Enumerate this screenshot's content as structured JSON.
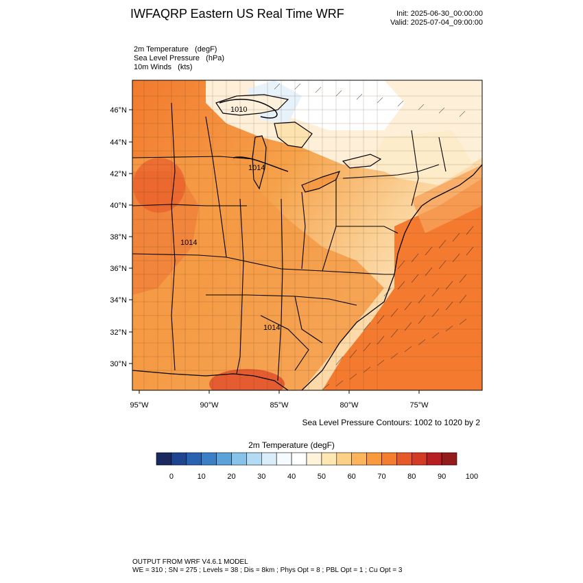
{
  "header": {
    "title": "IWFAQRP Eastern US Real Time WRF",
    "init": "Init: 2025-06-30_00:00:00",
    "valid": "Valid: 2025-07-04_09:00:00"
  },
  "variables": [
    "2m Temperature   (degF)",
    "Sea Level Pressure   (hPa)",
    "10m Winds   (kts)"
  ],
  "map": {
    "lat_ticks": [
      "46°N",
      "44°N",
      "42°N",
      "40°N",
      "38°N",
      "36°N",
      "34°N",
      "32°N",
      "30°N"
    ],
    "lon_ticks": [
      "95°W",
      "90°W",
      "85°W",
      "80°W",
      "75°W"
    ],
    "isobar_labels": [
      "1010",
      "1014",
      "1014",
      "1014"
    ],
    "slp_note": "Sea Level Pressure Contours: 1002 to 1020 by 2"
  },
  "colorbar": {
    "title": "2m Temperature  (degF)",
    "tick_labels": [
      "0",
      "10",
      "20",
      "30",
      "40",
      "50",
      "60",
      "70",
      "80",
      "90",
      "100"
    ],
    "colors": [
      "#1a2a5e",
      "#1f4591",
      "#2a62b2",
      "#3b80c6",
      "#5aa2d9",
      "#86c2ea",
      "#b3dcf4",
      "#daeefa",
      "#f5fbff",
      "#ffffff",
      "#fff3dc",
      "#fee7b0",
      "#fdd088",
      "#fcb55b",
      "#f99a3c",
      "#f47d2e",
      "#e65a2a",
      "#d43b25",
      "#b81f22",
      "#941b1c"
    ]
  },
  "footer": {
    "line1": "OUTPUT FROM WRF V4.6.1 MODEL",
    "line2": "WE = 310 ; SN = 275 ; Levels = 38 ; Dis = 8km ; Phys Opt = 8 ; PBL Opt = 1 ; Cu Opt = 3"
  }
}
